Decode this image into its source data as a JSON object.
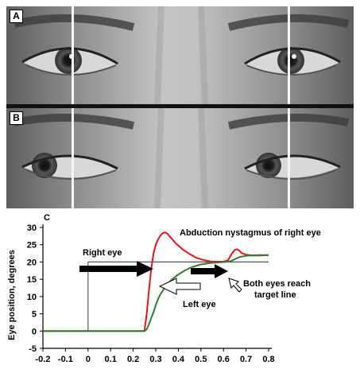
{
  "panels": [
    {
      "label": "A",
      "description": "eyes looking straight"
    },
    {
      "label": "B",
      "description": "eyes looking right"
    }
  ],
  "chart_label": "C",
  "chart_data": {
    "type": "line",
    "ylabel": "Eye position, degrees",
    "xlim": [
      -0.2,
      0.8
    ],
    "ylim": [
      -5,
      30
    ],
    "x_ticks": [
      "-0.2",
      "-0.1",
      "0",
      "0.1",
      "0.2",
      "0.3",
      "0.4",
      "0.5",
      "0.6",
      "0.7",
      "0.8"
    ],
    "y_ticks": [
      "-5",
      "0",
      "5",
      "10",
      "15",
      "20",
      "25",
      "30"
    ],
    "series": [
      {
        "name": "target line",
        "color": "#555555",
        "x": [
          -0.2,
          0.0,
          0.0,
          0.8
        ],
        "y": [
          0,
          0,
          20,
          20
        ]
      },
      {
        "name": "Right eye",
        "color": "#e8121d",
        "x": [
          -0.2,
          0.25,
          0.26,
          0.27,
          0.28,
          0.29,
          0.3,
          0.31,
          0.32,
          0.33,
          0.34,
          0.35,
          0.37,
          0.39,
          0.42,
          0.45,
          0.48,
          0.51,
          0.54,
          0.57,
          0.6,
          0.62,
          0.635,
          0.65,
          0.66,
          0.67,
          0.68,
          0.7,
          0.73,
          0.76,
          0.8
        ],
        "y": [
          0,
          0,
          5,
          12,
          18,
          22.5,
          25,
          26.5,
          27.6,
          28.3,
          28.6,
          28.3,
          26.8,
          25.3,
          23.6,
          22.3,
          21.2,
          20.6,
          20.2,
          20.1,
          20.1,
          20.5,
          22.2,
          23.5,
          23.7,
          23.3,
          22.6,
          22.1,
          21.9,
          21.9,
          22
        ]
      },
      {
        "name": "Left eye",
        "color": "#2e7d32",
        "x": [
          -0.2,
          0.25,
          0.26,
          0.27,
          0.28,
          0.29,
          0.3,
          0.31,
          0.32,
          0.34,
          0.36,
          0.38,
          0.4,
          0.43,
          0.46,
          0.5,
          0.54,
          0.58,
          0.61,
          0.63,
          0.65,
          0.67,
          0.7,
          0.75,
          0.8
        ],
        "y": [
          0,
          0,
          0.5,
          2,
          3.8,
          5.5,
          7.5,
          9.2,
          10.6,
          12.6,
          14.2,
          15.4,
          16.4,
          17.6,
          18.5,
          19.3,
          19.7,
          19.9,
          20,
          20.2,
          20.8,
          21.4,
          21.8,
          22,
          22
        ]
      }
    ],
    "annotations": [
      {
        "text": "Right eye",
        "arrow": "right",
        "arrow_fill": "black",
        "points_to_x": 0.3,
        "points_to_y": 24
      },
      {
        "text": "Abduction nystagmus of right eye",
        "arrow": "right",
        "arrow_fill": "black",
        "points_to_x": 0.63,
        "points_to_y": 22.5
      },
      {
        "text": "Left eye",
        "arrow": "left",
        "arrow_fill": "white",
        "points_to_x": 0.36,
        "points_to_y": 13
      },
      {
        "text": "Both eyes reach",
        "text2": "target line",
        "arrow": "up-left",
        "arrow_fill": "white",
        "points_to_x": 0.61,
        "points_to_y": 20
      }
    ],
    "grid": false
  },
  "colors": {
    "right_eye": "#e8121d",
    "left_eye": "#2e7d32",
    "target": "#555555"
  }
}
